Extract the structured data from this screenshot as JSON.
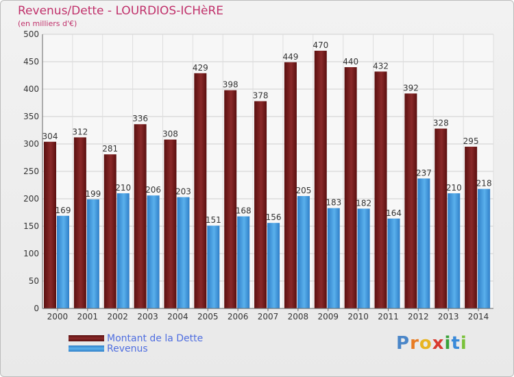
{
  "header": {
    "title": "Revenus/Dette - LOURDIOS-ICHèRE",
    "subtitle": "(en milliers d'€)"
  },
  "legend": {
    "debt_label": "Montant de la Dette",
    "revenue_label": "Revenus"
  },
  "logo": {
    "text": "Proxiti",
    "letters": [
      "P",
      "r",
      "o",
      "x",
      "i",
      "t",
      "i"
    ],
    "colors": [
      "#4a86c8",
      "#e87b22",
      "#e8b422",
      "#d93a30",
      "#3aa23a",
      "#3a8ad9",
      "#7ac23a"
    ]
  },
  "colors": {
    "debt": "#6b1414",
    "debt_light": "#a04848",
    "revenue": "#3a8fd6",
    "revenue_light": "#6ec0f0",
    "title": "#c0306a",
    "legend_text": "#4f6ee0"
  },
  "chart_data": {
    "type": "bar",
    "title": "Revenus/Dette - LOURDIOS-ICHèRE",
    "subtitle": "(en milliers d'€)",
    "categories": [
      "2000",
      "2001",
      "2002",
      "2003",
      "2004",
      "2005",
      "2006",
      "2007",
      "2008",
      "2009",
      "2010",
      "2011",
      "2012",
      "2013",
      "2014"
    ],
    "series": [
      {
        "name": "Montant de la Dette",
        "values": [
          304,
          312,
          281,
          336,
          308,
          429,
          398,
          378,
          449,
          470,
          440,
          432,
          392,
          328,
          295
        ]
      },
      {
        "name": "Revenus",
        "values": [
          169,
          199,
          210,
          206,
          203,
          151,
          168,
          156,
          205,
          183,
          182,
          164,
          237,
          210,
          218
        ]
      }
    ],
    "ylim": [
      0,
      500
    ],
    "yticks": [
      0,
      50,
      100,
      150,
      200,
      250,
      300,
      350,
      400,
      450,
      500
    ],
    "grid": true,
    "legend_position": "bottom-left"
  }
}
